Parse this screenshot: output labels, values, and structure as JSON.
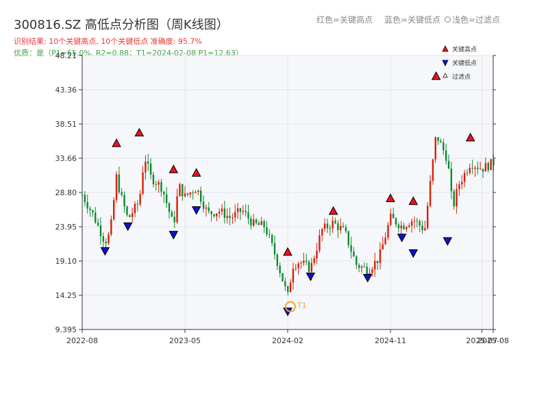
{
  "title": "300816.SZ 高低点分析图（周K线图）",
  "legend_top": {
    "red": "红色=关键高点",
    "blue": "蓝色=关键低点",
    "light": "浅色=过滤点"
  },
  "result_line": "识别结果: 10个关键高点, 10个关键低点   准确度: 95.7%",
  "quality_line": "优质：是（P1=65.0%, R2=0.88；T1=2024-02-08 P1=12.63）",
  "colors": {
    "up": "#d81e06",
    "down": "#0a8a2e",
    "high_marker": "#e8141e",
    "low_marker": "#1010d0",
    "t1": "#f5a623",
    "plot_bg": "#f5f7fa"
  },
  "chart_data": {
    "type": "candlestick",
    "ylim": [
      9.395,
      48.21
    ],
    "y_ticks": [
      "9.395",
      "14.25",
      "19.10",
      "23.95",
      "28.80",
      "33.66",
      "38.51",
      "43.36",
      "48.21"
    ],
    "x_ticks": [
      "2022-08",
      "2023-05",
      "2024-02",
      "2024-11",
      "2025-07",
      "2025-08"
    ],
    "grid": true,
    "legend": {
      "placement": "top-right",
      "entries": [
        "关键高点",
        "关键低点",
        "过滤点"
      ]
    },
    "x_range": [
      "2022-08",
      "2025-08"
    ],
    "key_highs": [
      {
        "date": "2022-11",
        "value": 35.2
      },
      {
        "date": "2023-01",
        "value": 36.7
      },
      {
        "date": "2023-04",
        "value": 31.5
      },
      {
        "date": "2023-06",
        "value": 31.0
      },
      {
        "date": "2024-02",
        "value": 19.8
      },
      {
        "date": "2024-06",
        "value": 25.6
      },
      {
        "date": "2024-11",
        "value": 27.4
      },
      {
        "date": "2025-01",
        "value": 27.0
      },
      {
        "date": "2025-03",
        "value": 44.7
      },
      {
        "date": "2025-06",
        "value": 36.0
      }
    ],
    "key_lows": [
      {
        "date": "2022-10",
        "value": 21.2
      },
      {
        "date": "2022-12",
        "value": 24.7
      },
      {
        "date": "2023-04",
        "value": 23.5
      },
      {
        "date": "2023-06",
        "value": 27.0
      },
      {
        "date": "2024-02",
        "value": 12.63
      },
      {
        "date": "2024-04",
        "value": 17.6
      },
      {
        "date": "2024-09",
        "value": 17.4
      },
      {
        "date": "2024-12",
        "value": 23.1
      },
      {
        "date": "2025-01",
        "value": 20.9
      },
      {
        "date": "2025-04",
        "value": 22.6
      }
    ],
    "t1": {
      "label": "T1",
      "date": "2024-02-08",
      "value": 12.63
    },
    "anchors": [
      [
        "2022-08",
        28.5
      ],
      [
        "2022-09",
        25.5
      ],
      [
        "2022-10",
        21.8
      ],
      [
        "2022-10",
        23.0
      ],
      [
        "2022-11",
        31.0
      ],
      [
        "2022-11",
        28.0
      ],
      [
        "2022-12",
        25.0
      ],
      [
        "2023-01",
        27.5
      ],
      [
        "2023-01",
        34.0
      ],
      [
        "2023-02",
        31.0
      ],
      [
        "2023-03",
        29.5
      ],
      [
        "2023-04",
        24.0
      ],
      [
        "2023-04",
        29.8
      ],
      [
        "2023-05",
        28.2
      ],
      [
        "2023-06",
        29.5
      ],
      [
        "2023-07",
        25.8
      ],
      [
        "2023-08",
        26.2
      ],
      [
        "2023-09",
        25.2
      ],
      [
        "2023-10",
        26.3
      ],
      [
        "2023-11",
        24.3
      ],
      [
        "2023-12",
        24.0
      ],
      [
        "2024-01",
        19.5
      ],
      [
        "2024-02",
        14.0
      ],
      [
        "2024-02",
        18.5
      ],
      [
        "2024-03",
        19.0
      ],
      [
        "2024-04",
        18.0
      ],
      [
        "2024-05",
        23.5
      ],
      [
        "2024-06",
        24.5
      ],
      [
        "2024-07",
        23.2
      ],
      [
        "2024-08",
        18.6
      ],
      [
        "2024-09",
        17.8
      ],
      [
        "2024-10",
        19.5
      ],
      [
        "2024-11",
        25.2
      ],
      [
        "2024-12",
        24.0
      ],
      [
        "2025-01",
        25.0
      ],
      [
        "2025-02",
        23.5
      ],
      [
        "2025-03",
        37.0
      ],
      [
        "2025-04",
        33.5
      ],
      [
        "2025-04",
        26.5
      ],
      [
        "2025-05",
        30.0
      ],
      [
        "2025-06",
        33.0
      ],
      [
        "2025-07",
        32.2
      ],
      [
        "2025-08",
        33.0
      ]
    ]
  }
}
